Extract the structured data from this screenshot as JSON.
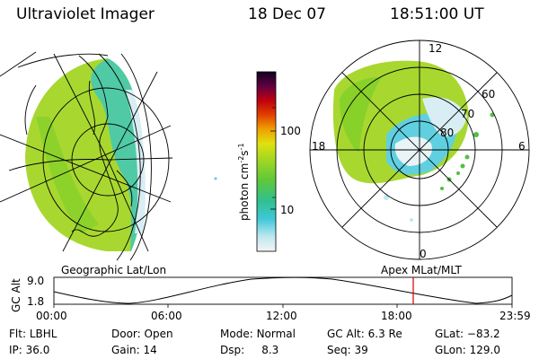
{
  "header": {
    "instrument": "Ultraviolet Imager",
    "date": "18 Dec 07",
    "time": "18:51:00 UT"
  },
  "colorbar": {
    "unit_label": "photon cm",
    "unit_sup1": "-2",
    "unit_s": "s",
    "unit_sup2": "-1",
    "tick_100": "100",
    "tick_10": "10",
    "scale": "log",
    "colors": [
      "#000030",
      "#400040",
      "#800000",
      "#c00000",
      "#e05000",
      "#f09000",
      "#f0c000",
      "#e0e000",
      "#c0e020",
      "#90d020",
      "#50c040",
      "#20c0a0",
      "#60d0e0",
      "#c0e8f0",
      "#f0f0f0"
    ]
  },
  "geo_panel": {
    "label": "Geographic Lat/Lon"
  },
  "polar_panel": {
    "label": "Apex MLat/MLT",
    "mlt_12": "12",
    "mlt_18": "18",
    "mlt_6": "6",
    "mlt_0": "0",
    "lat_60": "60",
    "lat_70": "70",
    "lat_80": "80"
  },
  "altitude_plot": {
    "ylabel": "GC Alt",
    "ymax_label": "9.0",
    "ymin_label": "1.8",
    "x_labels": [
      "00:00",
      "06:00",
      "12:00",
      "18:00",
      "23:59"
    ],
    "current_time_marker": "18:51",
    "marker_color": "#d00000"
  },
  "info": {
    "filter_label": "Flt:",
    "filter_value": "LBHL",
    "ip_label": "IP:",
    "ip_value": "36.0",
    "door_label": "Door:",
    "door_value": "Open",
    "gain_label": "Gain:",
    "gain_value": "14",
    "mode_label": "Mode:",
    "mode_value": "Normal",
    "dsp_label": "Dsp:",
    "dsp_value": "8.3",
    "gcalt_label": "GC Alt:",
    "gcalt_value": "6.3 Re",
    "seq_label": "Seq:",
    "seq_value": "39",
    "glat_label": "GLat:",
    "glat_value": "−83.2",
    "glon_label": "GLon:",
    "glon_value": "129.0"
  }
}
